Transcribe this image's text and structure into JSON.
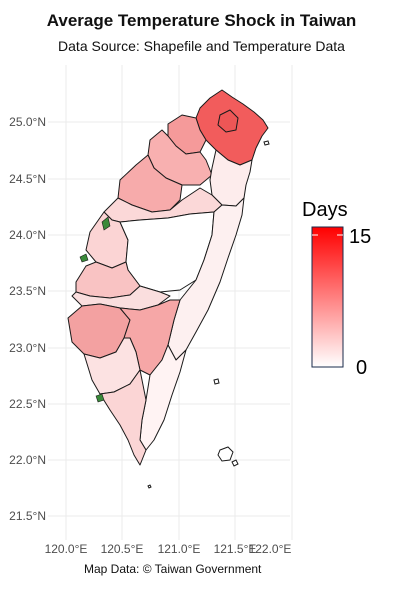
{
  "title": "Average Temperature Shock in Taiwan",
  "subtitle": "Data Source: Shapefile and Temperature Data",
  "caption": "Map Data: © Taiwan Government",
  "axes": {
    "x_ticks": [
      "120.0°E",
      "120.5°E",
      "121.0°E",
      "121.5°E",
      "122.0°E"
    ],
    "y_ticks": [
      "25.0°N",
      "24.5°N",
      "24.0°N",
      "23.5°N",
      "23.0°N",
      "22.5°N",
      "22.0°N",
      "21.5°N"
    ],
    "grid": true
  },
  "legend": {
    "title": "Days",
    "max_label": "15",
    "min_label": "0",
    "min_value": 0,
    "max_value": 15,
    "low_color": "#ffffff",
    "high_color": "#ff0000",
    "placement": "right"
  },
  "colors": {
    "background": "#ffffff",
    "grid": "#ebebeb",
    "border": "#1a1a1a",
    "park_green": "#3a8a3a"
  }
}
